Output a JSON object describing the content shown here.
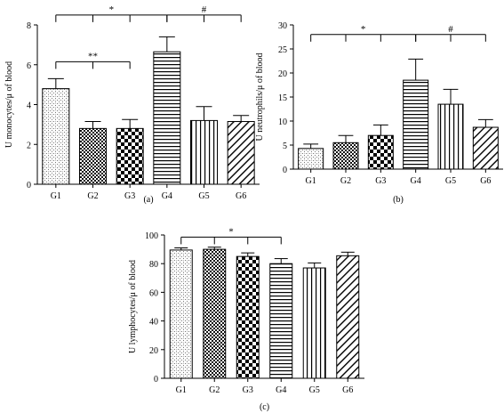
{
  "chart_data": [
    {
      "type": "bar",
      "panel_label": "(a)",
      "ylabel": "U monocytes/μ of blood",
      "categories": [
        "G1",
        "G2",
        "G3",
        "G4",
        "G5",
        "G6"
      ],
      "values": [
        4.8,
        2.8,
        2.8,
        6.65,
        3.2,
        3.15
      ],
      "errors": [
        0.5,
        0.35,
        0.45,
        0.75,
        0.7,
        0.3
      ],
      "ylim": [
        0,
        8
      ],
      "yticks": [
        0,
        2,
        4,
        6,
        8
      ],
      "patterns": [
        "stipple",
        "checker-small",
        "checker-large",
        "horizontal",
        "vertical",
        "diagonal"
      ],
      "significance": [
        {
          "label": "*",
          "from": 0,
          "to": 3,
          "ticks": [
            1,
            2
          ],
          "level": 8.5
        },
        {
          "label": "#",
          "from": 3,
          "to": 5,
          "ticks": [
            4
          ],
          "level": 8.5
        },
        {
          "label": "**",
          "from": 0,
          "to": 2,
          "ticks": [
            1
          ],
          "level": 6.15
        }
      ]
    },
    {
      "type": "bar",
      "panel_label": "(b)",
      "ylabel": "U neutrophils/μ of blood",
      "categories": [
        "G1",
        "G2",
        "G3",
        "G4",
        "G5",
        "G6"
      ],
      "values": [
        4.3,
        5.5,
        7.0,
        18.5,
        13.5,
        8.7
      ],
      "errors": [
        0.9,
        1.5,
        2.2,
        4.4,
        3.1,
        1.6
      ],
      "ylim": [
        0,
        30
      ],
      "yticks": [
        0,
        5,
        10,
        15,
        20,
        25,
        30
      ],
      "patterns": [
        "stipple",
        "checker-small",
        "checker-large",
        "horizontal",
        "vertical",
        "diagonal"
      ],
      "significance": [
        {
          "label": "*",
          "from": 0,
          "to": 3,
          "ticks": [
            1,
            2
          ],
          "level": 28.0
        },
        {
          "label": "#",
          "from": 3,
          "to": 5,
          "ticks": [
            4
          ],
          "level": 28.0
        }
      ]
    },
    {
      "type": "bar",
      "panel_label": "(c)",
      "ylabel": "U lymphocytes/μ of blood",
      "categories": [
        "G1",
        "G2",
        "G3",
        "G4",
        "G5",
        "G6"
      ],
      "values": [
        89.5,
        90.0,
        85.0,
        80.0,
        77.0,
        85.5
      ],
      "errors": [
        1.5,
        1.5,
        2.5,
        3.5,
        3.5,
        2.5
      ],
      "ylim": [
        0,
        100
      ],
      "yticks": [
        0,
        20,
        40,
        60,
        80,
        100
      ],
      "patterns": [
        "stipple",
        "checker-small",
        "checker-large",
        "horizontal",
        "vertical",
        "diagonal"
      ],
      "significance": [
        {
          "label": "*",
          "from": 0,
          "to": 3,
          "ticks": [
            1,
            2
          ],
          "level": 98.5
        }
      ]
    }
  ]
}
